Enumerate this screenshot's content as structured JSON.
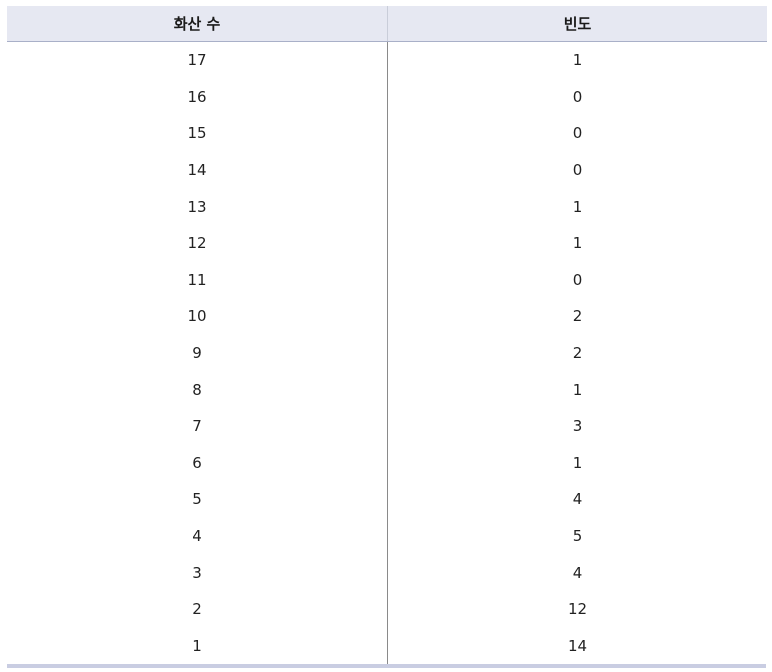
{
  "table": {
    "headers": [
      "화산 수",
      "빈도"
    ],
    "rows": [
      [
        "17",
        "1"
      ],
      [
        "16",
        "0"
      ],
      [
        "15",
        "0"
      ],
      [
        "14",
        "0"
      ],
      [
        "13",
        "1"
      ],
      [
        "12",
        "1"
      ],
      [
        "11",
        "0"
      ],
      [
        "10",
        "2"
      ],
      [
        "9",
        "2"
      ],
      [
        "8",
        "1"
      ],
      [
        "7",
        "3"
      ],
      [
        "6",
        "1"
      ],
      [
        "5",
        "4"
      ],
      [
        "4",
        "5"
      ],
      [
        "3",
        "4"
      ],
      [
        "2",
        "12"
      ],
      [
        "1",
        "14"
      ]
    ]
  },
  "colors": {
    "header_bg": "#e6e8f2",
    "bottom_rule": "#c9cde2",
    "divider": "#8a8a8a"
  }
}
